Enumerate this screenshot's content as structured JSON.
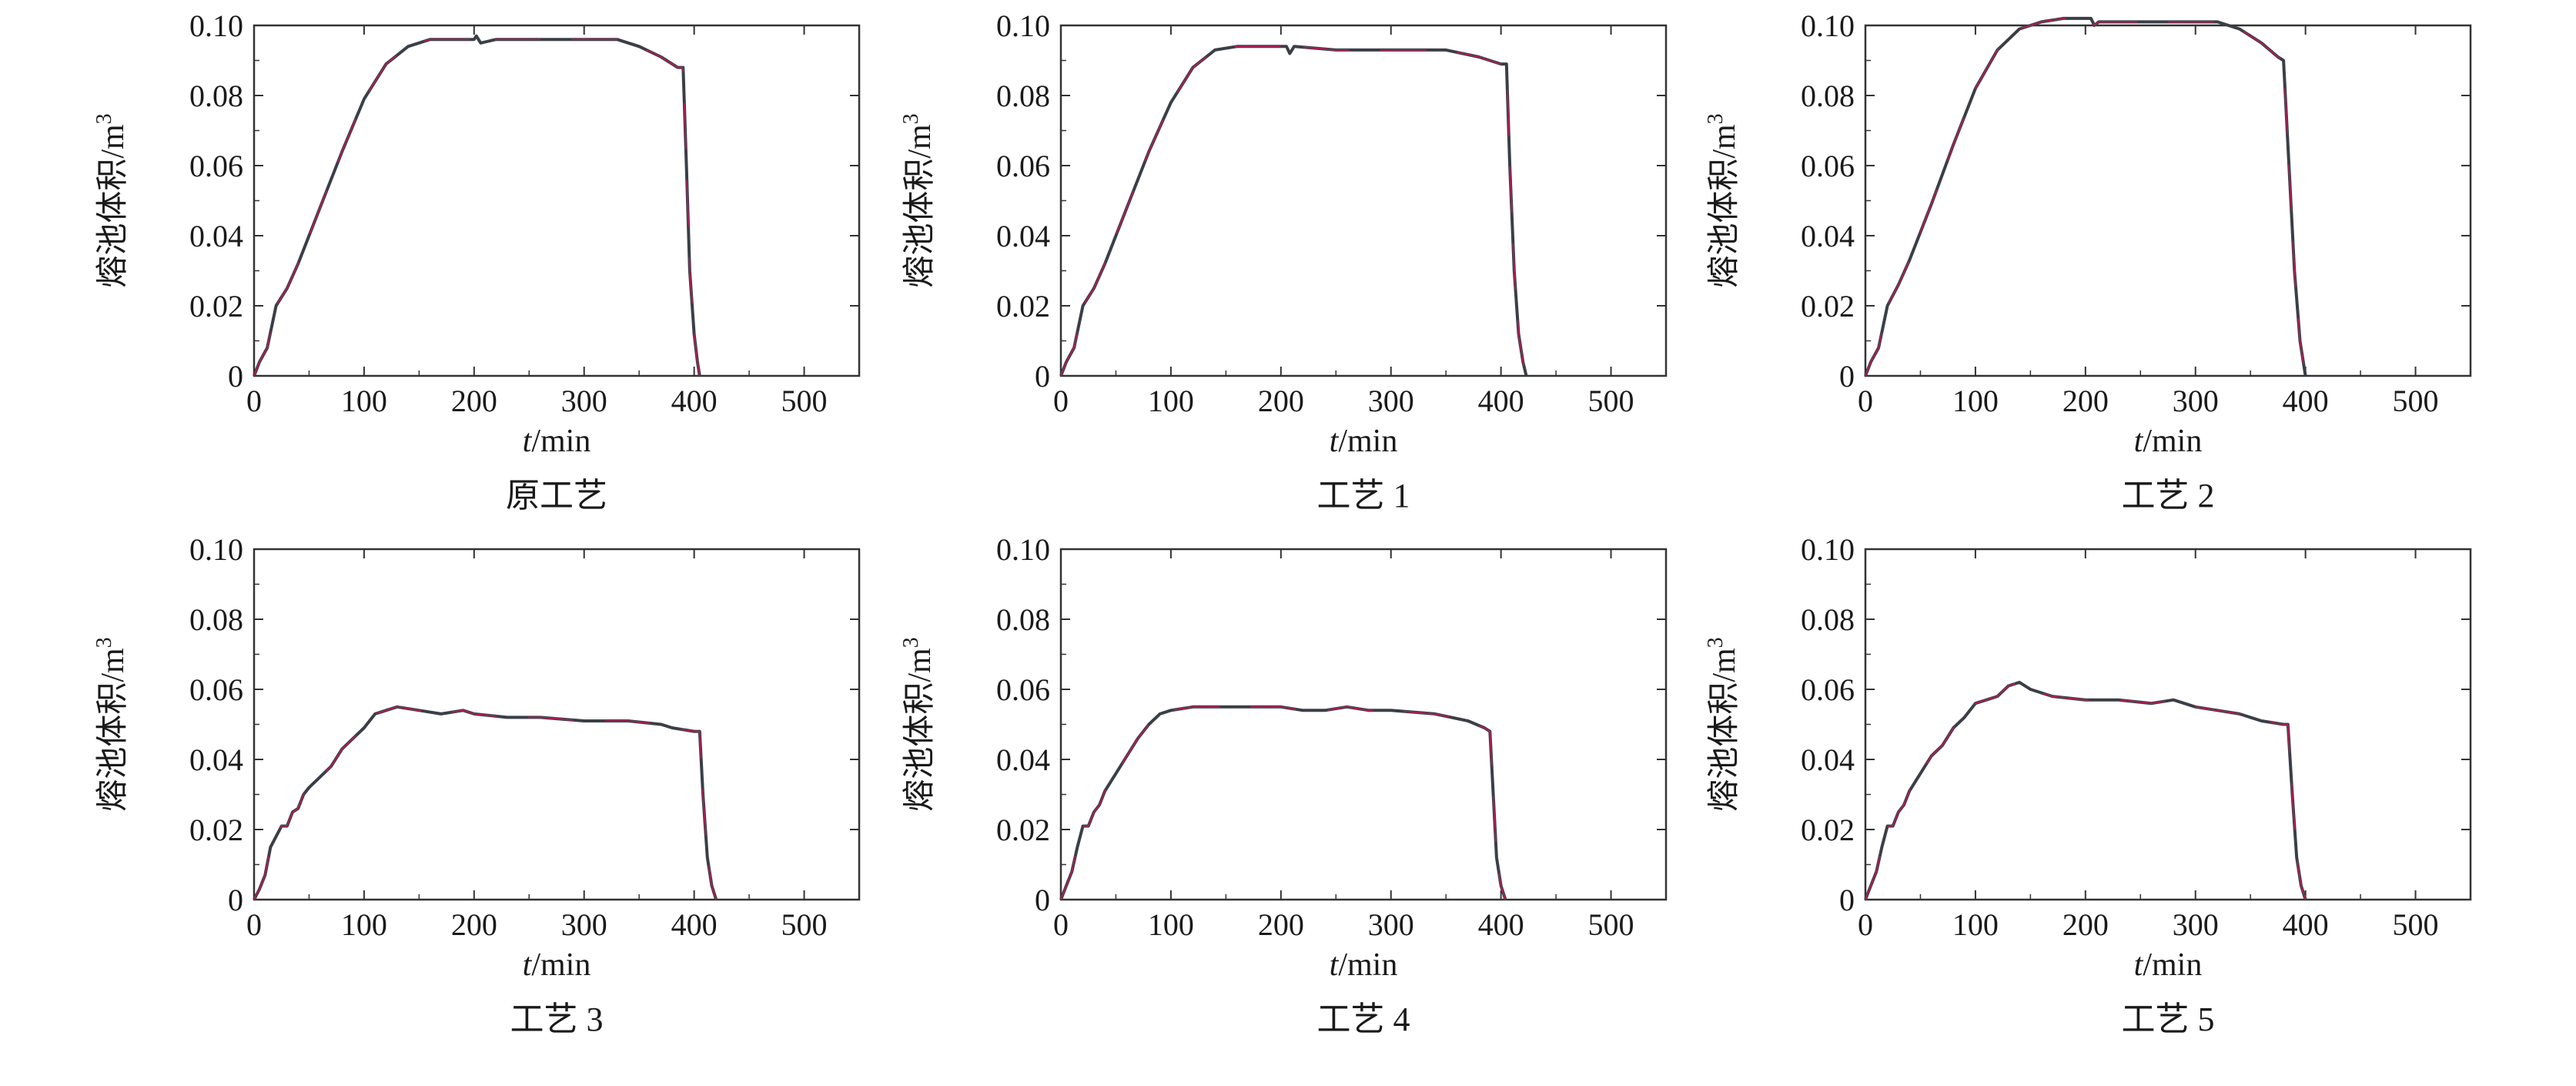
{
  "figure": {
    "line_color": "#3a3f47",
    "highlight_color": "#d4145a",
    "frame_color": "#333333"
  },
  "chart_data": [
    {
      "type": "line",
      "caption": "原工艺",
      "xlabel_italic": "t",
      "xlabel_rest": "/min",
      "ylabel": "熔池体积/m",
      "ylabel_sup": "3",
      "xlim": [
        0,
        550
      ],
      "ylim": [
        0,
        0.1
      ],
      "xticks": [
        0,
        100,
        200,
        300,
        400,
        500
      ],
      "yticks": [
        "0",
        "0.02",
        "0.04",
        "0.06",
        "0.08",
        "0.10"
      ],
      "grid": false,
      "series": [
        {
          "x": [
            0,
            5,
            12,
            20,
            30,
            40,
            60,
            80,
            100,
            120,
            140,
            160,
            180,
            200,
            202,
            206,
            220,
            260,
            300,
            330,
            350,
            370,
            385,
            390,
            393,
            396,
            400,
            403,
            405
          ],
          "y": [
            0,
            0.004,
            0.008,
            0.02,
            0.025,
            0.032,
            0.048,
            0.064,
            0.079,
            0.089,
            0.094,
            0.096,
            0.096,
            0.096,
            0.097,
            0.095,
            0.096,
            0.096,
            0.096,
            0.096,
            0.094,
            0.091,
            0.088,
            0.088,
            0.06,
            0.03,
            0.012,
            0.004,
            0
          ]
        }
      ]
    },
    {
      "type": "line",
      "caption": "工艺 1",
      "xlabel_italic": "t",
      "xlabel_rest": "/min",
      "ylabel": "熔池体积/m",
      "ylabel_sup": "3",
      "xlim": [
        0,
        550
      ],
      "ylim": [
        0,
        0.1
      ],
      "xticks": [
        0,
        100,
        200,
        300,
        400,
        500
      ],
      "yticks": [
        "0",
        "0.02",
        "0.04",
        "0.06",
        "0.08",
        "0.10"
      ],
      "grid": false,
      "series": [
        {
          "x": [
            0,
            5,
            12,
            20,
            30,
            40,
            60,
            80,
            100,
            120,
            140,
            160,
            180,
            200,
            205,
            208,
            212,
            250,
            300,
            350,
            380,
            400,
            405,
            408,
            412,
            416,
            420,
            423
          ],
          "y": [
            0,
            0.004,
            0.008,
            0.02,
            0.025,
            0.032,
            0.048,
            0.064,
            0.078,
            0.088,
            0.093,
            0.094,
            0.094,
            0.094,
            0.094,
            0.092,
            0.094,
            0.093,
            0.093,
            0.093,
            0.091,
            0.089,
            0.089,
            0.06,
            0.03,
            0.012,
            0.004,
            0
          ]
        }
      ]
    },
    {
      "type": "line",
      "caption": "工艺 2",
      "xlabel_italic": "t",
      "xlabel_rest": "/min",
      "ylabel": "熔池体积/m",
      "ylabel_sup": "3",
      "xlim": [
        0,
        550
      ],
      "ylim": [
        0,
        0.1
      ],
      "xticks": [
        0,
        100,
        200,
        300,
        400,
        500
      ],
      "yticks": [
        "0",
        "0.02",
        "0.04",
        "0.06",
        "0.08",
        "0.10"
      ],
      "grid": false,
      "series": [
        {
          "x": [
            0,
            5,
            12,
            20,
            30,
            40,
            60,
            80,
            100,
            120,
            140,
            160,
            180,
            200,
            205,
            208,
            212,
            250,
            300,
            320,
            340,
            360,
            375,
            380,
            385,
            390,
            395,
            400
          ],
          "y": [
            0,
            0.004,
            0.008,
            0.02,
            0.026,
            0.033,
            0.049,
            0.066,
            0.082,
            0.093,
            0.099,
            0.101,
            0.102,
            0.102,
            0.102,
            0.1,
            0.101,
            0.101,
            0.101,
            0.101,
            0.099,
            0.095,
            0.091,
            0.09,
            0.06,
            0.03,
            0.01,
            0
          ]
        }
      ]
    },
    {
      "type": "line",
      "caption": "工艺 3",
      "xlabel_italic": "t",
      "xlabel_rest": "/min",
      "ylabel": "熔池体积/m",
      "ylabel_sup": "3",
      "xlim": [
        0,
        550
      ],
      "ylim": [
        0,
        0.1
      ],
      "xticks": [
        0,
        100,
        200,
        300,
        400,
        500
      ],
      "yticks": [
        "0",
        "0.02",
        "0.04",
        "0.06",
        "0.08",
        "0.10"
      ],
      "grid": false,
      "series": [
        {
          "x": [
            0,
            5,
            10,
            15,
            20,
            25,
            30,
            35,
            40,
            45,
            50,
            60,
            70,
            80,
            90,
            100,
            110,
            120,
            130,
            150,
            170,
            190,
            200,
            230,
            260,
            300,
            340,
            370,
            380,
            400,
            405,
            408,
            412,
            416,
            420
          ],
          "y": [
            0,
            0.003,
            0.007,
            0.015,
            0.018,
            0.021,
            0.021,
            0.025,
            0.026,
            0.03,
            0.032,
            0.035,
            0.038,
            0.043,
            0.046,
            0.049,
            0.053,
            0.054,
            0.055,
            0.054,
            0.053,
            0.054,
            0.053,
            0.052,
            0.052,
            0.051,
            0.051,
            0.05,
            0.049,
            0.048,
            0.048,
            0.03,
            0.012,
            0.004,
            0
          ]
        }
      ]
    },
    {
      "type": "line",
      "caption": "工艺 4",
      "xlabel_italic": "t",
      "xlabel_rest": "/min",
      "ylabel": "熔池体积/m",
      "ylabel_sup": "3",
      "xlim": [
        0,
        550
      ],
      "ylim": [
        0,
        0.1
      ],
      "xticks": [
        0,
        100,
        200,
        300,
        400,
        500
      ],
      "yticks": [
        "0",
        "0.02",
        "0.04",
        "0.06",
        "0.08",
        "0.10"
      ],
      "grid": false,
      "series": [
        {
          "x": [
            0,
            5,
            10,
            15,
            20,
            25,
            30,
            35,
            40,
            50,
            60,
            70,
            80,
            90,
            100,
            120,
            140,
            160,
            180,
            200,
            220,
            240,
            260,
            280,
            300,
            340,
            370,
            385,
            390,
            393,
            396,
            400,
            404
          ],
          "y": [
            0,
            0.004,
            0.008,
            0.015,
            0.021,
            0.021,
            0.025,
            0.027,
            0.031,
            0.036,
            0.041,
            0.046,
            0.05,
            0.053,
            0.054,
            0.055,
            0.055,
            0.055,
            0.055,
            0.055,
            0.054,
            0.054,
            0.055,
            0.054,
            0.054,
            0.053,
            0.051,
            0.049,
            0.048,
            0.03,
            0.012,
            0.004,
            0
          ]
        }
      ]
    },
    {
      "type": "line",
      "caption": "工艺 5",
      "xlabel_italic": "t",
      "xlabel_rest": "/min",
      "ylabel": "熔池体积/m",
      "ylabel_sup": "3",
      "xlim": [
        0,
        550
      ],
      "ylim": [
        0,
        0.1
      ],
      "xticks": [
        0,
        100,
        200,
        300,
        400,
        500
      ],
      "yticks": [
        "0",
        "0.02",
        "0.04",
        "0.06",
        "0.08",
        "0.10"
      ],
      "grid": false,
      "series": [
        {
          "x": [
            0,
            5,
            10,
            15,
            20,
            25,
            30,
            35,
            40,
            50,
            60,
            70,
            80,
            90,
            100,
            110,
            120,
            130,
            140,
            150,
            170,
            200,
            230,
            260,
            280,
            300,
            320,
            340,
            360,
            380,
            384,
            388,
            392,
            396,
            400
          ],
          "y": [
            0,
            0.004,
            0.008,
            0.015,
            0.021,
            0.021,
            0.025,
            0.027,
            0.031,
            0.036,
            0.041,
            0.044,
            0.049,
            0.052,
            0.056,
            0.057,
            0.058,
            0.061,
            0.062,
            0.06,
            0.058,
            0.057,
            0.057,
            0.056,
            0.057,
            0.055,
            0.054,
            0.053,
            0.051,
            0.05,
            0.05,
            0.03,
            0.012,
            0.004,
            0
          ]
        }
      ]
    }
  ]
}
